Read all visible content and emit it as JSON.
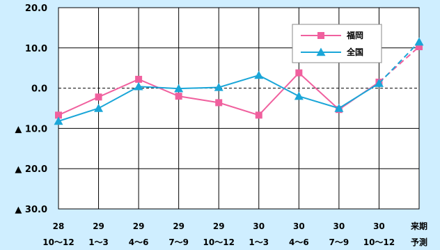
{
  "chart_data": {
    "type": "line",
    "x_labels": [
      [
        "28",
        "10～12"
      ],
      [
        "29",
        "1～3"
      ],
      [
        "29",
        "4～6"
      ],
      [
        "29",
        "7～9"
      ],
      [
        "29",
        "10～12"
      ],
      [
        "30",
        "1～3"
      ],
      [
        "30",
        "4～6"
      ],
      [
        "30",
        "7～9"
      ],
      [
        "30",
        "10～12"
      ],
      [
        "来期",
        "予測"
      ]
    ],
    "y_ticks": [
      20,
      10,
      0,
      -10,
      -20,
      -30
    ],
    "y_tick_labels": [
      "20.0",
      "10.0",
      "0.0",
      "▲ 10.0",
      "▲ 20.0",
      "▲ 30.0"
    ],
    "ylim": [
      -30,
      20
    ],
    "grid": true,
    "zero_line": "dashed",
    "legend_position": "top-right",
    "series": [
      {
        "name": "福岡",
        "color": "#f0609e",
        "marker": "square",
        "values": [
          -6.7,
          -2.2,
          2.2,
          -2.0,
          -3.6,
          -6.7,
          3.8,
          -5.3,
          1.5,
          10.3
        ],
        "dashed_last_segment": true
      },
      {
        "name": "全国",
        "color": "#1aa6d8",
        "marker": "triangle",
        "values": [
          -8.2,
          -5.0,
          0.4,
          -0.1,
          0.2,
          3.2,
          -2.0,
          -5.0,
          1.2,
          11.5
        ],
        "dashed_last_segment": true
      }
    ]
  }
}
